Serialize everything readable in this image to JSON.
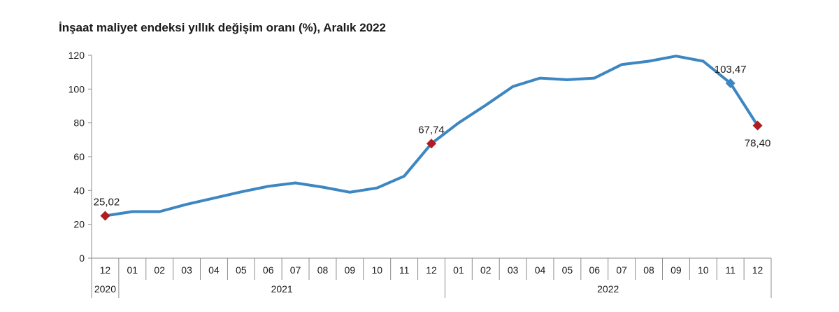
{
  "chart_data": {
    "type": "line",
    "title": "İnşaat maliyet endeksi yıllık değişim oranı (%), Aralık 2022",
    "xlabel": "",
    "ylabel": "",
    "ylim": [
      0,
      120
    ],
    "yticks": [
      "0",
      "20",
      "40",
      "60",
      "80",
      "100",
      "120"
    ],
    "categories": [
      "12",
      "01",
      "02",
      "03",
      "04",
      "05",
      "06",
      "07",
      "08",
      "09",
      "10",
      "11",
      "12",
      "01",
      "02",
      "03",
      "04",
      "05",
      "06",
      "07",
      "08",
      "09",
      "10",
      "11",
      "12"
    ],
    "years": [
      {
        "label": "2020",
        "start": 0,
        "end": 0
      },
      {
        "label": "2021",
        "start": 1,
        "end": 12
      },
      {
        "label": "2022",
        "start": 13,
        "end": 24
      }
    ],
    "series": [
      {
        "values": [
          25.02,
          27.5,
          27.5,
          31.8,
          35.5,
          39.2,
          42.5,
          44.5,
          42.0,
          39.0,
          41.5,
          48.5,
          67.74,
          80.0,
          90.5,
          101.5,
          106.5,
          105.5,
          106.5,
          114.5,
          116.5,
          119.5,
          116.5,
          103.47,
          78.4
        ],
        "color": "#3c86c2"
      }
    ],
    "highlights": [
      {
        "index": 0,
        "label": "25,02",
        "color": "#b01c20",
        "shape": "diamond",
        "label_pos": "above"
      },
      {
        "index": 12,
        "label": "67,74",
        "color": "#b01c20",
        "shape": "diamond",
        "label_pos": "above"
      },
      {
        "index": 23,
        "label": "103,47",
        "color": "#3c86c2",
        "shape": "diamond",
        "label_pos": "above"
      },
      {
        "index": 24,
        "label": "78,40",
        "color": "#b01c20",
        "shape": "diamond",
        "label_pos": "below"
      }
    ],
    "grid": false,
    "legend": "none"
  }
}
